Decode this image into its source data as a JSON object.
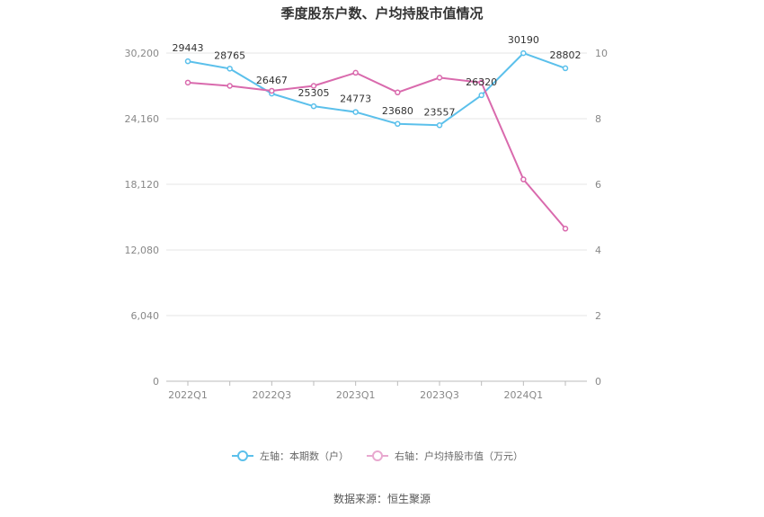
{
  "chart_data": {
    "type": "line",
    "title": "季度股东户数、户均持股市值情况",
    "categories": [
      "2022Q1",
      "2022Q2",
      "2022Q3",
      "2022Q4",
      "2023Q1",
      "2023Q2",
      "2023Q3",
      "2023Q4",
      "2024Q1",
      "2024Q2"
    ],
    "x_tick_labels": [
      "2022Q1",
      "2022Q3",
      "2023Q1",
      "2023Q3",
      "2024Q1"
    ],
    "left_axis": {
      "ticks": [
        "0",
        "6,040",
        "12,080",
        "18,120",
        "24,160",
        "30,200"
      ],
      "ylim": [
        0,
        30200
      ]
    },
    "right_axis": {
      "ticks": [
        "0",
        "2",
        "4",
        "6",
        "8",
        "10"
      ],
      "ylim": [
        0,
        10
      ]
    },
    "series": [
      {
        "name": "左轴：本期数（户）",
        "axis": "left",
        "color": "#5bc0eb",
        "values": [
          29443,
          28765,
          26467,
          25305,
          24773,
          23680,
          23557,
          26320,
          30190,
          28802
        ],
        "labels": [
          "29443",
          "28765",
          "26467",
          "25305",
          "24773",
          "23680",
          "23557",
          "26320",
          "30190",
          "28802"
        ]
      },
      {
        "name": "右轴：户均持股市值（万元）",
        "axis": "right",
        "color": "#d96aad",
        "values": [
          9.1,
          9.0,
          8.85,
          9.0,
          9.4,
          8.8,
          9.25,
          9.1,
          6.15,
          4.65
        ]
      }
    ],
    "grid": true,
    "legend_position": "bottom"
  },
  "source": "数据来源：恒生聚源"
}
